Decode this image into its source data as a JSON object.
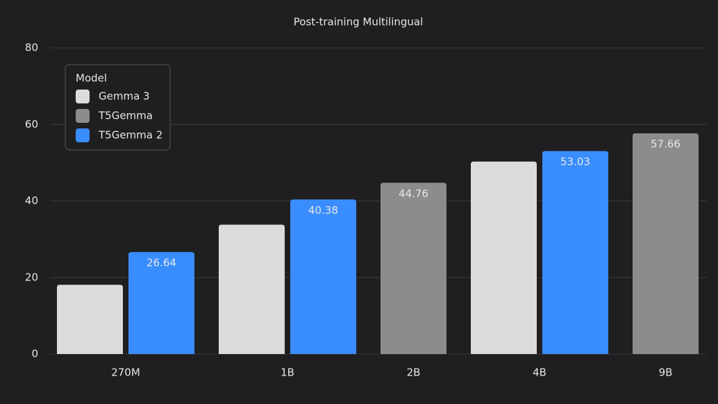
{
  "chart_data": {
    "type": "bar",
    "title": "Post-training Multilingual",
    "categories": [
      "270M",
      "1B",
      "2B",
      "4B",
      "9B"
    ],
    "series": [
      {
        "name": "Gemma 3",
        "color": "#dcdcdc",
        "values": [
          18.1,
          33.8,
          null,
          50.3,
          null
        ],
        "data_labels": false
      },
      {
        "name": "T5Gemma",
        "color": "#8c8c8c",
        "values": [
          null,
          null,
          44.76,
          null,
          57.66
        ],
        "data_labels": true
      },
      {
        "name": "T5Gemma 2",
        "color": "#3a8dff",
        "values": [
          26.64,
          40.38,
          null,
          53.03,
          null
        ],
        "data_labels": true
      }
    ],
    "legend_title": "Model",
    "legend": "upper left",
    "ylim": [
      0,
      80
    ],
    "yticks": [
      0,
      20,
      40,
      60,
      80
    ],
    "grid": true
  }
}
